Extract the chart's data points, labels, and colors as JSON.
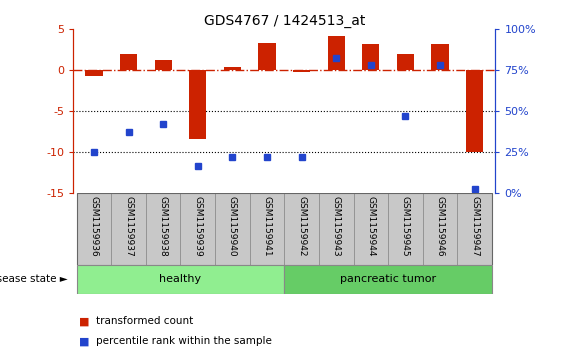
{
  "title": "GDS4767 / 1424513_at",
  "samples": [
    "GSM1159936",
    "GSM1159937",
    "GSM1159938",
    "GSM1159939",
    "GSM1159940",
    "GSM1159941",
    "GSM1159942",
    "GSM1159943",
    "GSM1159944",
    "GSM1159945",
    "GSM1159946",
    "GSM1159947"
  ],
  "bar_values": [
    -0.8,
    2.0,
    1.2,
    -8.5,
    0.3,
    3.3,
    -0.2,
    4.2,
    3.2,
    2.0,
    3.2,
    -10.0
  ],
  "dot_percentiles": [
    25,
    37,
    42,
    16,
    22,
    22,
    22,
    82,
    78,
    47,
    78,
    2
  ],
  "bar_color": "#cc2200",
  "dot_color": "#2244cc",
  "hline_y": 0,
  "hline_color": "#cc2200",
  "dotted_lines": [
    -5,
    -10
  ],
  "ylim": [
    -15,
    5
  ],
  "y2lim": [
    0,
    100
  ],
  "y2ticks": [
    0,
    25,
    50,
    75,
    100
  ],
  "y2ticklabels": [
    "0%",
    "25%",
    "50%",
    "75%",
    "100%"
  ],
  "yticks": [
    -15,
    -10,
    -5,
    0,
    5
  ],
  "healthy_indices": [
    0,
    5
  ],
  "tumor_indices": [
    6,
    11
  ],
  "healthy_label": "healthy",
  "tumor_label": "pancreatic tumor",
  "healthy_color": "#90ee90",
  "tumor_color": "#66cc66",
  "disease_state_label": "disease state",
  "xlabel_bg_color": "#c8c8c8",
  "legend_bar_label": "transformed count",
  "legend_dot_label": "percentile rank within the sample",
  "bar_width": 0.5,
  "figsize": [
    5.63,
    3.63
  ],
  "dpi": 100,
  "background_color": "#ffffff"
}
